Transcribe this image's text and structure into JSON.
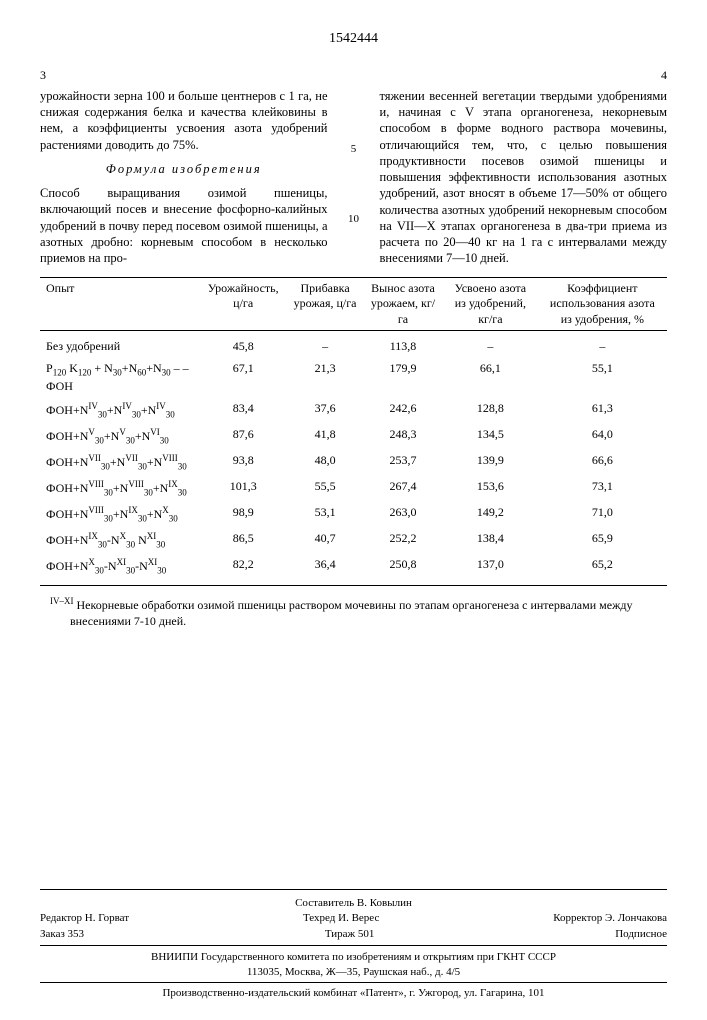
{
  "patent_number": "1542444",
  "page_left": "3",
  "page_right": "4",
  "line_marker_5": "5",
  "line_marker_10": "10",
  "col_left_p1": "урожайности зерна 100 и больше центнеров с 1 га, не снижая содержания белка и качества клейковины в нем, а коэффициенты усвоения азота удобрений растениями доводить до 75%.",
  "formula_title": "Формула изобретения",
  "col_left_p2": "Способ выращивания озимой пшеницы, включающий посев и внесение фосфорно-калийных удобрений в почву перед посевом озимой пшеницы, а азотных дробно: корневым способом в несколько приемов на про-",
  "col_right_p1": "тяжении весенней вегетации твердыми удобрениями и, начиная с V этапа органогенеза, некорневым способом в форме водного раствора мочевины, отличающийся тем, что, с целью повышения продуктивности посевов озимой пшеницы и повышения эффективности использования азотных удобрений, азот вносят в объеме 17—50% от общего количества азотных удобрений некорневым способом на VII—X этапах органогенеза в два-три приема из расчета по 20—40 кг на 1 га с интервалами между внесениями 7—10 дней.",
  "table": {
    "columns": [
      "Опыт",
      "Урожайность, ц/га",
      "Прибавка урожая, ц/га",
      "Вынос азота урожаем, кг/га",
      "Усвоено азота из удобрений, кг/га",
      "Коэффициент использования азота из удобрения, %"
    ],
    "rows": [
      {
        "label_html": "Без удобрений",
        "c": [
          "45,8",
          "–",
          "113,8",
          "–",
          "–"
        ]
      },
      {
        "label_html": "P<span class=sub>120</span> K<span class=sub>120</span> + N<span class=sub>30</span>+N<span class=sub>60</span>+N<span class=sub>30</span> – –ФОН",
        "c": [
          "67,1",
          "21,3",
          "179,9",
          "66,1",
          "55,1"
        ]
      },
      {
        "label_html": "ФОН+N<span class=sup>IV</span><span class=sub>30</span>+N<span class=sup>IV</span><span class=sub>30</span>+N<span class=sup>IV</span><span class=sub>30</span>",
        "c": [
          "83,4",
          "37,6",
          "242,6",
          "128,8",
          "61,3"
        ]
      },
      {
        "label_html": "ФОН+N<span class=sup>V</span><span class=sub>30</span>+N<span class=sup>V</span><span class=sub>30</span>+N<span class=sup>VI</span><span class=sub>30</span>",
        "c": [
          "87,6",
          "41,8",
          "248,3",
          "134,5",
          "64,0"
        ]
      },
      {
        "label_html": "ФОН+N<span class=sup>VII</span><span class=sub>30</span>+N<span class=sup>VII</span><span class=sub>30</span>+N<span class=sup>VIII</span><span class=sub>30</span>",
        "c": [
          "93,8",
          "48,0",
          "253,7",
          "139,9",
          "66,6"
        ]
      },
      {
        "label_html": "ФОН+N<span class=sup>VIII</span><span class=sub>30</span>+N<span class=sup>VIII</span><span class=sub>30</span>+N<span class=sup>IX</span><span class=sub>30</span>",
        "c": [
          "101,3",
          "55,5",
          "267,4",
          "153,6",
          "73,1"
        ]
      },
      {
        "label_html": "ФОН+N<span class=sup>VIII</span><span class=sub>30</span>+N<span class=sup>IX</span><span class=sub>30</span>+N<span class=sup>X</span><span class=sub>30</span>",
        "c": [
          "98,9",
          "53,1",
          "263,0",
          "149,2",
          "71,0"
        ]
      },
      {
        "label_html": "ФОН+N<span class=sup>IX</span><span class=sub>30</span>-N<span class=sup>X</span><span class=sub>30</span> N<span class=sup>XI</span><span class=sub>30</span>",
        "c": [
          "86,5",
          "40,7",
          "252,2",
          "138,4",
          "65,9"
        ]
      },
      {
        "label_html": "ФОН+N<span class=sup>X</span><span class=sub>30</span>-N<span class=sup>XI</span><span class=sub>30</span>-N<span class=sup>XI</span><span class=sub>30</span>",
        "c": [
          "82,2",
          "36,4",
          "250,8",
          "137,0",
          "65,2"
        ]
      }
    ]
  },
  "footnote_sup": "IV–XI",
  "footnote": "Некорневые обработки озимой пшеницы раствором мочевины по этапам органогенеза с интервалами между внесениями 7-10 дней.",
  "footer": {
    "compiler": "Составитель В. Ковылин",
    "editor": "Редактор Н. Горват",
    "tech": "Техред И. Верес",
    "corrector": "Корректор Э. Лончакова",
    "order": "Заказ 353",
    "tirazh": "Тираж 501",
    "sign": "Подписное",
    "org1": "ВНИИПИ Государственного комитета по изобретениям и открытиям при ГКНТ СССР",
    "org2": "113035, Москва, Ж—35, Раушская наб., д. 4/5",
    "org3": "Производственно-издательский комбинат «Патент», г. Ужгород, ул. Гагарина, 101"
  }
}
